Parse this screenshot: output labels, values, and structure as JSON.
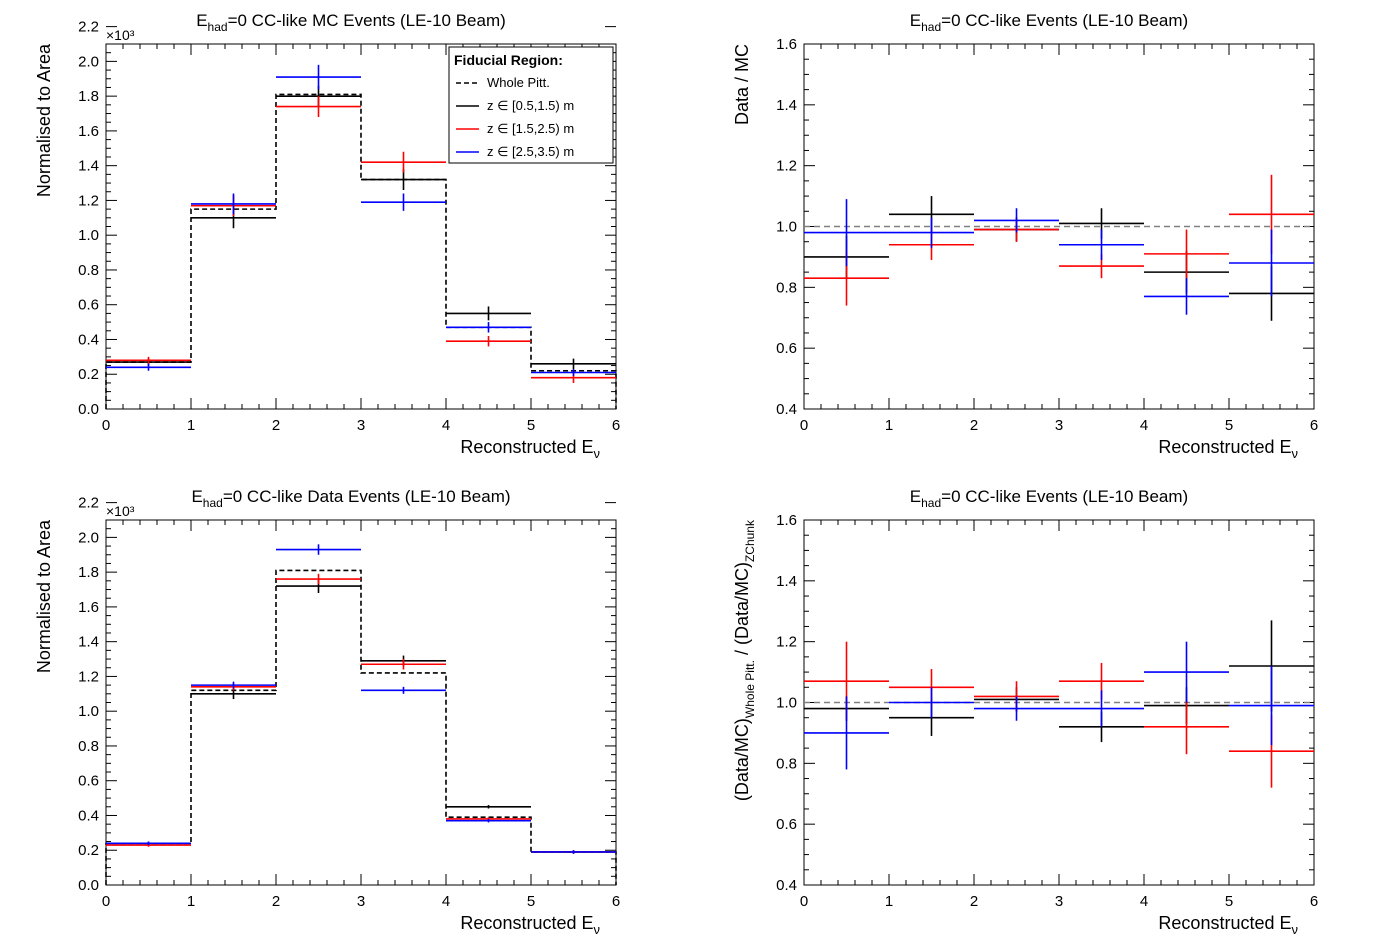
{
  "chart_data": [
    {
      "type": "step-histogram",
      "title": "E_had=0 CC-like MC Events (LE-10 Beam)",
      "title_main": "E",
      "title_sub": "had",
      "title_rest": "=0 CC-like MC Events (LE-10 Beam)",
      "xlabel_main": "Reconstructed E",
      "xlabel_sub": "ν",
      "ylabel": "Normalised to Area",
      "y_multiplier": "×10³",
      "xlim": [
        0,
        6
      ],
      "ylim": [
        0,
        2.1
      ],
      "bin_edges": [
        0,
        1,
        2,
        3,
        4,
        5,
        6
      ],
      "legend": {
        "position": "top-right",
        "title": "Fiducial Region:",
        "entries": [
          "Whole Pitt.",
          "z ∈ [0.5,1.5) m",
          "z ∈ [1.5,2.5) m",
          "z ∈ [2.5,3.5) m"
        ]
      },
      "series": [
        {
          "name": "Whole Pitt.",
          "color": "#000000",
          "style": "dashed-step",
          "values": [
            0.27,
            1.15,
            1.81,
            1.32,
            0.47,
            0.22
          ]
        },
        {
          "name": "z ∈ [0.5,1.5) m",
          "color": "#000000",
          "style": "points",
          "values": [
            0.27,
            1.1,
            1.8,
            1.32,
            0.55,
            0.26
          ],
          "errors": [
            0.02,
            0.06,
            0.06,
            0.06,
            0.04,
            0.03
          ]
        },
        {
          "name": "z ∈ [1.5,2.5) m",
          "color": "#ff0000",
          "style": "points",
          "values": [
            0.28,
            1.17,
            1.74,
            1.42,
            0.39,
            0.18
          ],
          "errors": [
            0.02,
            0.06,
            0.06,
            0.06,
            0.03,
            0.03
          ]
        },
        {
          "name": "z ∈ [2.5,3.5) m",
          "color": "#0000ff",
          "style": "points",
          "values": [
            0.24,
            1.18,
            1.91,
            1.19,
            0.47,
            0.21
          ],
          "errors": [
            0.02,
            0.06,
            0.07,
            0.05,
            0.03,
            0.02
          ]
        }
      ]
    },
    {
      "type": "ratio-points",
      "title": "E_had=0 CC-like Events (LE-10 Beam)",
      "title_main": "E",
      "title_sub": "had",
      "title_rest": "=0 CC-like Events (LE-10 Beam)",
      "xlabel_main": "Reconstructed E",
      "xlabel_sub": "ν",
      "ylabel": "Data / MC",
      "xlim": [
        0,
        6
      ],
      "ylim": [
        0.4,
        1.6
      ],
      "reference_line": 1.0,
      "bin_edges": [
        0,
        1,
        2,
        3,
        4,
        5,
        6
      ],
      "series": [
        {
          "name": "z ∈ [0.5,1.5) m",
          "color": "#000000",
          "values": [
            0.9,
            1.04,
            0.99,
            1.01,
            0.85,
            0.78
          ],
          "errors": [
            0.07,
            0.06,
            0.04,
            0.05,
            0.07,
            0.09
          ]
        },
        {
          "name": "z ∈ [1.5,2.5) m",
          "color": "#ff0000",
          "values": [
            0.83,
            0.94,
            0.99,
            0.87,
            0.91,
            1.04
          ],
          "errors": [
            0.09,
            0.05,
            0.04,
            0.04,
            0.08,
            0.13
          ]
        },
        {
          "name": "z ∈ [2.5,3.5) m",
          "color": "#0000ff",
          "values": [
            0.98,
            0.98,
            1.02,
            0.94,
            0.77,
            0.88
          ],
          "errors": [
            0.11,
            0.05,
            0.04,
            0.05,
            0.06,
            0.11
          ]
        }
      ]
    },
    {
      "type": "step-histogram",
      "title": "E_had=0 CC-like Data Events (LE-10 Beam)",
      "title_main": "E",
      "title_sub": "had",
      "title_rest": "=0 CC-like Data Events (LE-10 Beam)",
      "xlabel_main": "Reconstructed E",
      "xlabel_sub": "ν",
      "ylabel": "Normalised to Area",
      "y_multiplier": "×10³",
      "xlim": [
        0,
        6
      ],
      "ylim": [
        0,
        2.1
      ],
      "bin_edges": [
        0,
        1,
        2,
        3,
        4,
        5,
        6
      ],
      "series": [
        {
          "name": "Whole Pitt.",
          "color": "#000000",
          "style": "dashed-step",
          "values": [
            0.24,
            1.12,
            1.81,
            1.22,
            0.39,
            0.19
          ]
        },
        {
          "name": "z ∈ [0.5,1.5) m",
          "color": "#000000",
          "style": "points",
          "values": [
            0.24,
            1.1,
            1.72,
            1.29,
            0.45,
            0.19
          ],
          "errors": [
            0.01,
            0.03,
            0.04,
            0.03,
            0.01,
            0.01
          ]
        },
        {
          "name": "z ∈ [1.5,2.5) m",
          "color": "#ff0000",
          "style": "points",
          "values": [
            0.23,
            1.14,
            1.76,
            1.27,
            0.38,
            0.19
          ],
          "errors": [
            0.01,
            0.02,
            0.03,
            0.03,
            0.01,
            0.01
          ]
        },
        {
          "name": "z ∈ [2.5,3.5) m",
          "color": "#0000ff",
          "style": "points",
          "values": [
            0.24,
            1.15,
            1.93,
            1.12,
            0.37,
            0.19
          ],
          "errors": [
            0.01,
            0.02,
            0.03,
            0.02,
            0.01,
            0.01
          ]
        }
      ]
    },
    {
      "type": "ratio-points",
      "title": "E_had=0 CC-like Events (LE-10 Beam)",
      "title_main": "E",
      "title_sub": "had",
      "title_rest": "=0 CC-like Events (LE-10 Beam)",
      "xlabel_main": "Reconstructed E",
      "xlabel_sub": "ν",
      "ylabel": "(Data/MC)_Whole Pitt. / (Data/MC)_ZChunk",
      "ylabel_parts": [
        "(Data/MC)",
        "Whole Pitt.",
        " / (Data/MC)",
        "ZChunk"
      ],
      "xlim": [
        0,
        6
      ],
      "ylim": [
        0.4,
        1.6
      ],
      "reference_line": 1.0,
      "bin_edges": [
        0,
        1,
        2,
        3,
        4,
        5,
        6
      ],
      "series": [
        {
          "name": "z ∈ [0.5,1.5) m",
          "color": "#000000",
          "values": [
            0.98,
            0.95,
            1.01,
            0.92,
            0.99,
            1.12
          ],
          "errors": [
            0.04,
            0.06,
            0.04,
            0.05,
            0.06,
            0.15
          ]
        },
        {
          "name": "z ∈ [1.5,2.5) m",
          "color": "#ff0000",
          "values": [
            1.07,
            1.05,
            1.02,
            1.07,
            0.92,
            0.84
          ],
          "errors": [
            0.13,
            0.06,
            0.05,
            0.06,
            0.09,
            0.12
          ]
        },
        {
          "name": "z ∈ [2.5,3.5) m",
          "color": "#0000ff",
          "values": [
            0.9,
            1.0,
            0.98,
            0.98,
            1.1,
            0.99
          ],
          "errors": [
            0.12,
            0.05,
            0.04,
            0.06,
            0.1,
            0.13
          ]
        }
      ]
    }
  ]
}
